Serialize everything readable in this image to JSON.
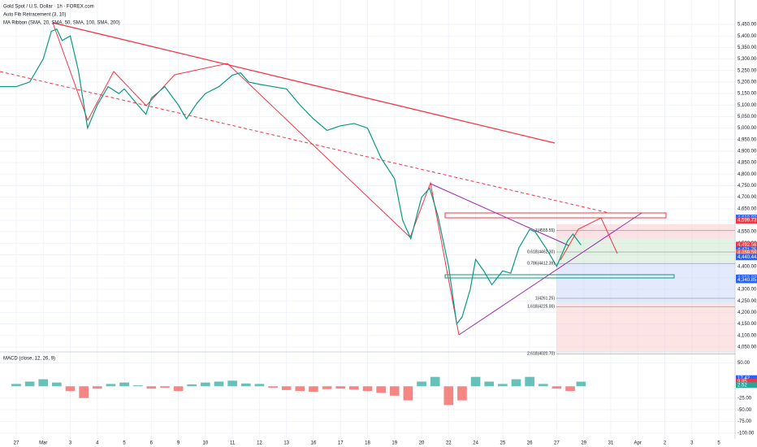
{
  "chart_data": [
    {
      "type": "line",
      "title": "Gold Spot / U.S. Dollar · 1h · FOREX.com",
      "subtitle": "Auto Fib Retracement (3, 10)",
      "annotation": "MA Ribbon (SMA, 20, SMA, 50, SMA, 100, SMA, 200)",
      "xlim": [
        -0.6,
        26.6
      ],
      "xticks": [
        {
          "value": 0,
          "label": "27"
        },
        {
          "value": 1,
          "label": "Mar"
        },
        {
          "value": 2,
          "label": "3"
        },
        {
          "value": 3,
          "label": "4"
        },
        {
          "value": 4,
          "label": "5"
        },
        {
          "value": 5,
          "label": "6"
        },
        {
          "value": 6,
          "label": "9"
        },
        {
          "value": 7,
          "label": "10"
        },
        {
          "value": 8,
          "label": "11"
        },
        {
          "value": 9,
          "label": "12"
        },
        {
          "value": 10,
          "label": "13"
        },
        {
          "value": 11,
          "label": "16"
        },
        {
          "value": 12,
          "label": "17"
        },
        {
          "value": 13,
          "label": "18"
        },
        {
          "value": 14,
          "label": "19"
        },
        {
          "value": 15,
          "label": "20"
        },
        {
          "value": 16,
          "label": "22"
        },
        {
          "value": 17,
          "label": "24"
        },
        {
          "value": 18,
          "label": "25"
        },
        {
          "value": 19,
          "label": "26"
        },
        {
          "value": 20,
          "label": "27"
        },
        {
          "value": 21,
          "label": "29"
        },
        {
          "value": 22,
          "label": "31"
        },
        {
          "value": 23,
          "label": "Apr"
        },
        {
          "value": 24,
          "label": "2"
        },
        {
          "value": 25,
          "label": "3"
        },
        {
          "value": 26,
          "label": "5"
        }
      ],
      "ylim": [
        4032,
        5556
      ],
      "yticks": [
        {
          "value": 5450,
          "label": "5,450.00"
        },
        {
          "value": 5400,
          "label": "5,400.00"
        },
        {
          "value": 5350,
          "label": "5,350.00"
        },
        {
          "value": 5300,
          "label": "5,300.00"
        },
        {
          "value": 5250,
          "label": "5,250.00"
        },
        {
          "value": 5200,
          "label": "5,200.00"
        },
        {
          "value": 5150,
          "label": "5,150.00"
        },
        {
          "value": 5100,
          "label": "5,100.00"
        },
        {
          "value": 5050,
          "label": "5,050.00"
        },
        {
          "value": 5000,
          "label": "5,000.00"
        },
        {
          "value": 4950,
          "label": "4,950.00"
        },
        {
          "value": 4900,
          "label": "4,900.00"
        },
        {
          "value": 4850,
          "label": "4,850.00"
        },
        {
          "value": 4800,
          "label": "4,800.00"
        },
        {
          "value": 4750,
          "label": "4,750.00"
        },
        {
          "value": 4700,
          "label": "4,700.00"
        },
        {
          "value": 4650,
          "label": "4,650.00"
        },
        {
          "value": 4600,
          "label": "4,600.00"
        },
        {
          "value": 4550,
          "label": "4,550.00"
        },
        {
          "value": 4500,
          "label": "4,500.00"
        },
        {
          "value": 4450,
          "label": "4,450.00"
        },
        {
          "value": 4400,
          "label": "4,400.00"
        },
        {
          "value": 4350,
          "label": "4,350.00"
        },
        {
          "value": 4300,
          "label": "4,300.00"
        },
        {
          "value": 4250,
          "label": "4,250.00"
        },
        {
          "value": 4200,
          "label": "4,200.00"
        },
        {
          "value": 4150,
          "label": "4,150.00"
        },
        {
          "value": 4100,
          "label": "4,100.00"
        },
        {
          "value": 4050,
          "label": "4,050.00"
        }
      ],
      "x": [
        -0.6,
        0,
        0.5,
        1,
        1.3,
        1.5,
        1.7,
        2,
        2.3,
        2.64,
        3,
        3.4,
        3.8,
        4,
        4.5,
        4.8,
        5,
        5.5,
        6,
        6.3,
        6.7,
        7,
        7.5,
        8,
        8.3,
        8.6,
        9,
        9.5,
        10,
        10.5,
        11,
        11.5,
        12,
        12.5,
        13,
        13.5,
        14,
        14.3,
        14.6,
        15,
        15.3,
        15.6,
        16,
        16.3,
        16.5,
        16.8,
        17,
        17.3,
        17.6,
        18,
        18.3,
        18.6,
        19,
        19.2,
        19.6,
        20,
        20.4,
        20.6,
        20.9
      ],
      "series": [
        {
          "color": "#089981",
          "values": [
            5180,
            5180,
            5200,
            5300,
            5420,
            5430,
            5380,
            5400,
            5250,
            5000,
            5100,
            5180,
            5150,
            5170,
            5100,
            5060,
            5130,
            5180,
            5100,
            5040,
            5110,
            5150,
            5180,
            5230,
            5240,
            5200,
            5190,
            5180,
            5170,
            5100,
            5040,
            4990,
            5010,
            5020,
            5000,
            4870,
            4780,
            4600,
            4520,
            4700,
            4740,
            4620,
            4400,
            4150,
            4180,
            4300,
            4430,
            4380,
            4320,
            4380,
            4370,
            4480,
            4560,
            4550,
            4480,
            4400,
            4510,
            4540,
            4492.56
          ]
        }
      ],
      "price_tags": [
        {
          "value": 4610.03,
          "label": "4,610.03",
          "color": "#2962ff"
        },
        {
          "value": 4600.61,
          "label": "4,600.61",
          "color": "#2962ff"
        },
        {
          "value": 4599.73,
          "label": "4,599.73",
          "color": "#f23645"
        },
        {
          "value": 4492.56,
          "label": "4,492.56",
          "color": "#f23645"
        },
        {
          "value": 4471.75,
          "label": "4,471.75",
          "color": "#2962ff"
        },
        {
          "value": 4459.59,
          "label": "4,459.59",
          "color": "#ff5d3b"
        },
        {
          "value": 4440.44,
          "label": "4,440.44",
          "color": "#2962ff"
        },
        {
          "value": 4350.27,
          "label": "4,350.27",
          "color": "#2962ff"
        },
        {
          "value": 4340.85,
          "label": "4,340.85",
          "color": "#2962ff"
        }
      ],
      "fib_levels": [
        {
          "value": 4555.55,
          "label": "1(4555.55)"
        },
        {
          "value": 4462.3,
          "label": "0.618(4462.30)"
        },
        {
          "value": 4412.39,
          "label": "0.786(4412.39)"
        },
        {
          "value": 4261.25,
          "label": "1(4261.25)"
        },
        {
          "value": 4225.0,
          "label": "1.618(4225.00)"
        },
        {
          "value": 4020.7,
          "label": "2.618(4020.70)"
        }
      ]
    },
    {
      "type": "bar",
      "title": "MACD (close, 12, 26, 9)",
      "ylim": [
        -112,
        68
      ],
      "yticks": [
        {
          "value": 50,
          "label": "50.00"
        },
        {
          "value": -25,
          "label": "-25.00"
        },
        {
          "value": -50,
          "label": "-50.00"
        },
        {
          "value": -75,
          "label": "-75.00"
        },
        {
          "value": -100,
          "label": "-100.00"
        }
      ],
      "x": [
        0,
        0.5,
        1,
        1.5,
        2,
        2.5,
        3,
        3.5,
        4,
        4.5,
        5,
        5.5,
        6,
        6.5,
        7,
        7.5,
        8,
        8.5,
        9,
        9.5,
        10,
        10.5,
        11,
        11.5,
        12,
        12.5,
        13,
        13.5,
        14,
        14.5,
        15,
        15.5,
        16,
        16.5,
        17,
        17.5,
        18,
        18.5,
        19,
        19.5,
        20,
        20.5,
        20.9
      ],
      "values": [
        5,
        10,
        15,
        8,
        -10,
        -25,
        -5,
        5,
        8,
        2,
        -5,
        -3,
        -10,
        4,
        8,
        10,
        12,
        6,
        5,
        -3,
        -8,
        -10,
        -12,
        -6,
        -5,
        -7,
        -10,
        -14,
        -20,
        -30,
        10,
        20,
        -40,
        -30,
        20,
        10,
        5,
        15,
        20,
        5,
        -5,
        -10,
        9.85
      ],
      "value_tags": [
        {
          "value": 17.42,
          "label": "17.42",
          "color": "#2962ff"
        },
        {
          "value": 9.85,
          "label": "9.85",
          "color": "#f23645"
        },
        {
          "value": 2.52,
          "label": "2.52",
          "color": "#26a69a"
        }
      ]
    }
  ]
}
